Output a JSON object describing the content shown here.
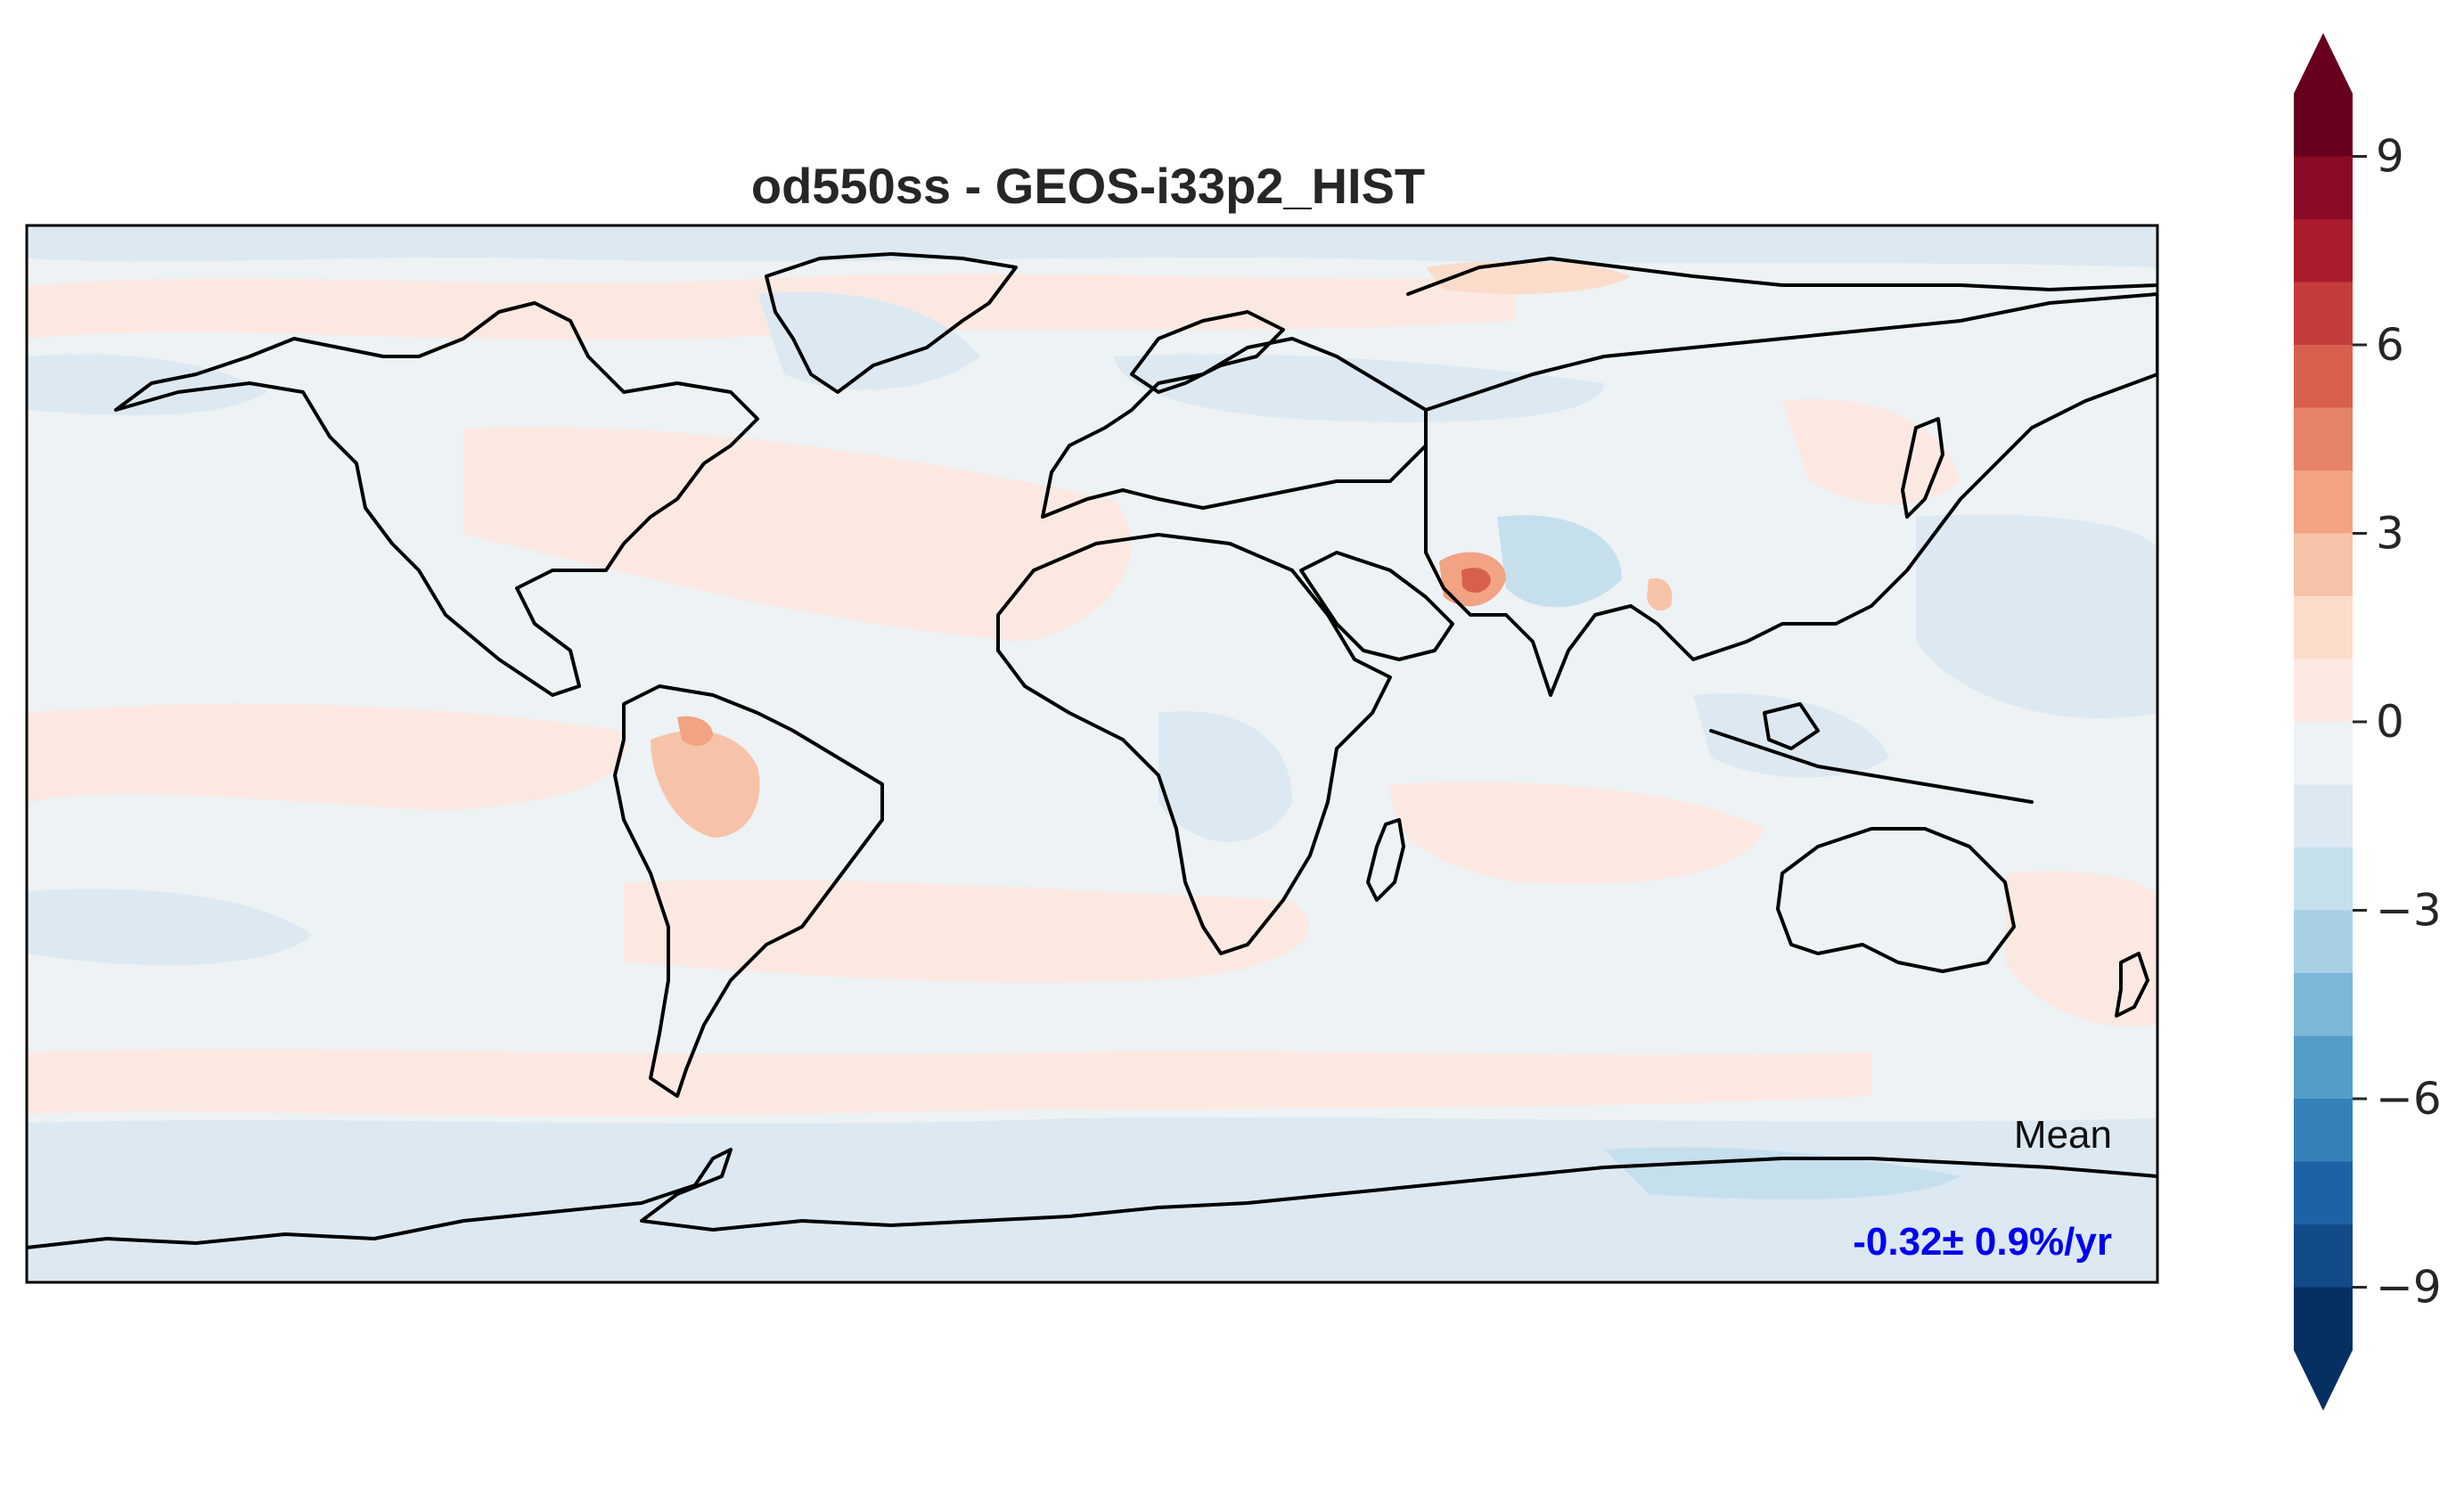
{
  "title": "od550ss - GEOS-i33p2_HIST",
  "annotation": {
    "label": "Mean",
    "value": "-0.32± 0.9%/yr",
    "value_color": "#0000ee"
  },
  "map": {
    "projection": "PlateCarree",
    "lon_range": [
      -180,
      180
    ],
    "lat_range": [
      -90,
      90
    ],
    "background_level": "near-zero (-1 to 0)",
    "background_color": "#edf2f5",
    "anomalies": [
      {
        "region": "southern Iran / Pakistan",
        "level": "5 to 7",
        "color": "#d6604d"
      },
      {
        "region": "western Amazon",
        "level": "1 to 3",
        "color": "#f7cdb6"
      },
      {
        "region": "eastern North America",
        "level": "0 to 1",
        "color": "#fbe4d7"
      },
      {
        "region": "northern Siberia",
        "level": "0 to 2",
        "color": "#fbe4d7"
      },
      {
        "region": "tropical Pacific / Atlantic bands",
        "level": "0 to 1",
        "color": "#fbe9e1"
      },
      {
        "region": "Southern Ocean / Antarctica",
        "level": "-1 to -3",
        "color": "#d1e5f0"
      },
      {
        "region": "North Atlantic / Arctic",
        "level": "-1 to -2",
        "color": "#dce9f2"
      },
      {
        "region": "Tibet / western Pacific",
        "level": "-1 to -3",
        "color": "#d1e5f0"
      }
    ]
  },
  "colorbar": {
    "ticks": [
      "9",
      "6",
      "3",
      "0",
      "−3",
      "−6",
      "−9"
    ],
    "extend": "both",
    "levels": [
      {
        "range": "-10 to -9",
        "color": "#053061"
      },
      {
        "range": "-9 to -8",
        "color": "#124a8a"
      },
      {
        "range": "-8 to -7",
        "color": "#1e62a6"
      },
      {
        "range": "-7 to -6",
        "color": "#3480b9"
      },
      {
        "range": "-6 to -5",
        "color": "#539dc8"
      },
      {
        "range": "-5 to -4",
        "color": "#7cb7d6"
      },
      {
        "range": "-4 to -3",
        "color": "#a7cfe4"
      },
      {
        "range": "-3 to -2",
        "color": "#c6dfed"
      },
      {
        "range": "-2 to -1",
        "color": "#dce9f2"
      },
      {
        "range": "-1 to 0",
        "color": "#edf2f5"
      },
      {
        "range": "0 to 1",
        "color": "#fbe9e1"
      },
      {
        "range": "1 to 2",
        "color": "#fbdccb"
      },
      {
        "range": "2 to 3",
        "color": "#f7c3a8"
      },
      {
        "range": "3 to 4",
        "color": "#f1a383"
      },
      {
        "range": "4 to 5",
        "color": "#e58267"
      },
      {
        "range": "5 to 6",
        "color": "#d6604d"
      },
      {
        "range": "6 to 7",
        "color": "#c43c3c"
      },
      {
        "range": "7 to 8",
        "color": "#ac1a2d"
      },
      {
        "range": "8 to 9",
        "color": "#8a0b25"
      },
      {
        "range": "9 to 10",
        "color": "#67001f"
      }
    ],
    "over_color": "#67001f",
    "under_color": "#053061"
  }
}
